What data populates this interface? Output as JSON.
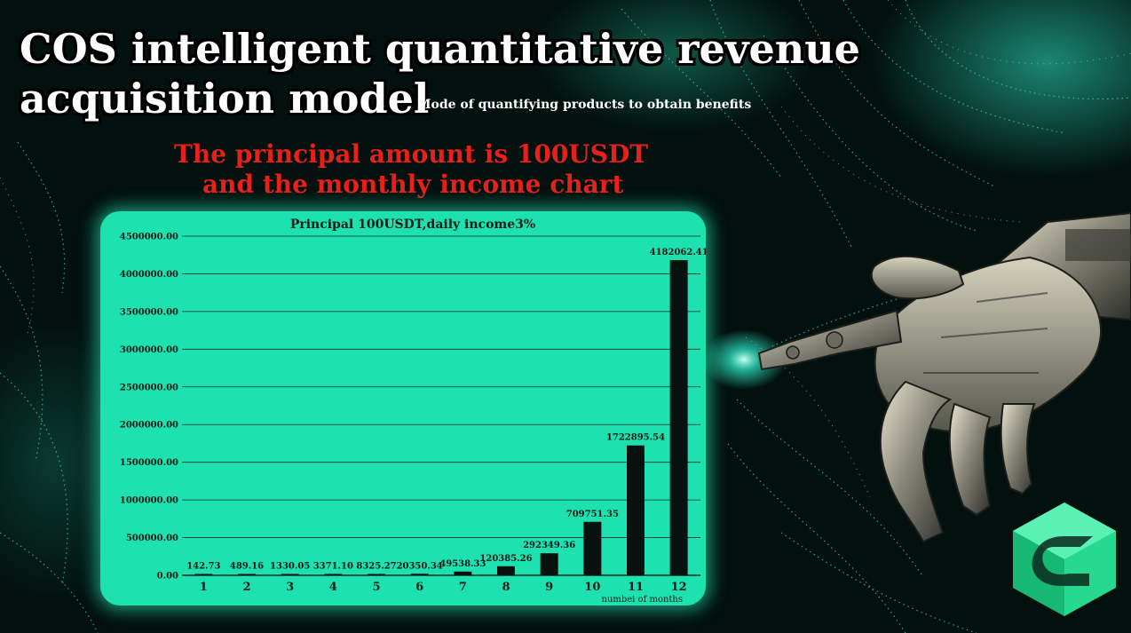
{
  "header": {
    "title_line1": "COS intelligent quantitative revenue",
    "title_line2": "acquisition model",
    "subtitle": "Mode of quantifying products to obtain benefits",
    "red_line1": "The principal amount is 100USDT",
    "red_line2": "and the monthly income chart"
  },
  "colors": {
    "panel": "#1de2b0",
    "bar": "#07120f",
    "red_heading": "#e8201a",
    "logo": "#2ee39c"
  },
  "icons": [
    "robot-hand-image",
    "brand-logo-icon"
  ],
  "chart_data": {
    "type": "bar",
    "title": "Principal 100USDT,daily income3%",
    "xlabel": "numbei of months",
    "ylabel": "",
    "categories": [
      "1",
      "2",
      "3",
      "4",
      "5",
      "6",
      "7",
      "8",
      "9",
      "10",
      "11",
      "12"
    ],
    "values": [
      142.73,
      489.16,
      1330.05,
      3371.1,
      8325.27,
      20350.34,
      49538.33,
      120385.26,
      292349.36,
      709751.35,
      1722895.54,
      4182062.41
    ],
    "value_labels": [
      "142.73",
      "489.16",
      "1330.05",
      "3371.10",
      "8325.27",
      "20350.34",
      "49538.33",
      "120385.26",
      "292349.36",
      "709751.35",
      "1722895.54",
      "4182062.41"
    ],
    "yticks": [
      "0.00",
      "500000.00",
      "1000000.00",
      "1500000.00",
      "2000000.00",
      "2500000.00",
      "3000000.00",
      "3500000.00",
      "4000000.00",
      "4500000.00"
    ],
    "ylim": [
      0,
      4500000
    ],
    "grid": true,
    "legend": "none"
  }
}
